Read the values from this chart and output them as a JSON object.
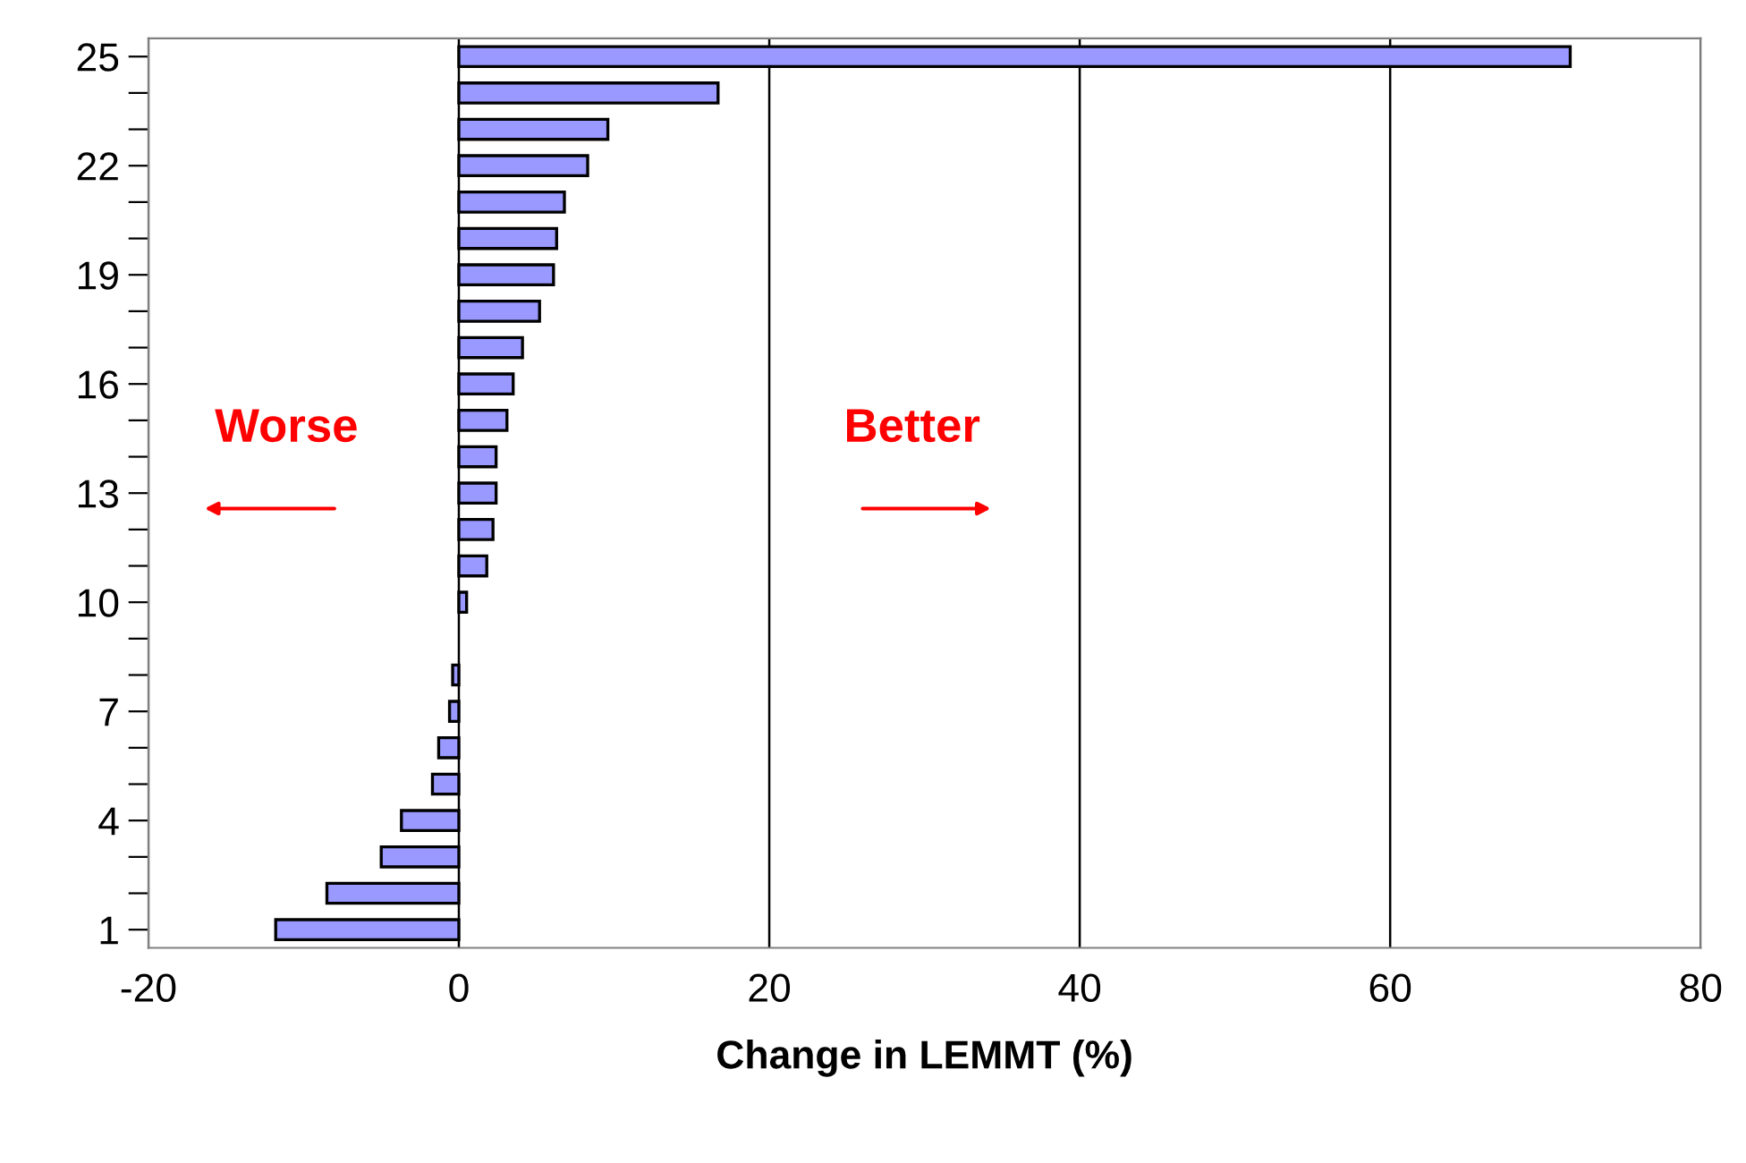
{
  "chart_data": {
    "type": "bar",
    "orientation": "horizontal",
    "xlabel": "Change in LEMMT (%)",
    "categories": [
      "25",
      null,
      null,
      "22",
      null,
      null,
      "19",
      null,
      null,
      "16",
      null,
      null,
      "13",
      null,
      null,
      "10",
      null,
      null,
      "7",
      null,
      null,
      "4",
      null,
      null,
      "1"
    ],
    "values": [
      71.6,
      16.7,
      9.6,
      8.3,
      6.8,
      6.3,
      6.1,
      5.2,
      4.1,
      3.5,
      3.1,
      2.4,
      2.4,
      2.2,
      1.8,
      0.5,
      null,
      -0.4,
      -0.6,
      -1.3,
      -1.7,
      -3.7,
      -5.0,
      -8.5,
      -11.8
    ],
    "color": "#9999ff",
    "xlim": [
      -20,
      80
    ],
    "xticks": [
      -20,
      0,
      20,
      40,
      60,
      80
    ],
    "grid": "x",
    "annotations": [
      "Worse",
      "Better"
    ]
  }
}
